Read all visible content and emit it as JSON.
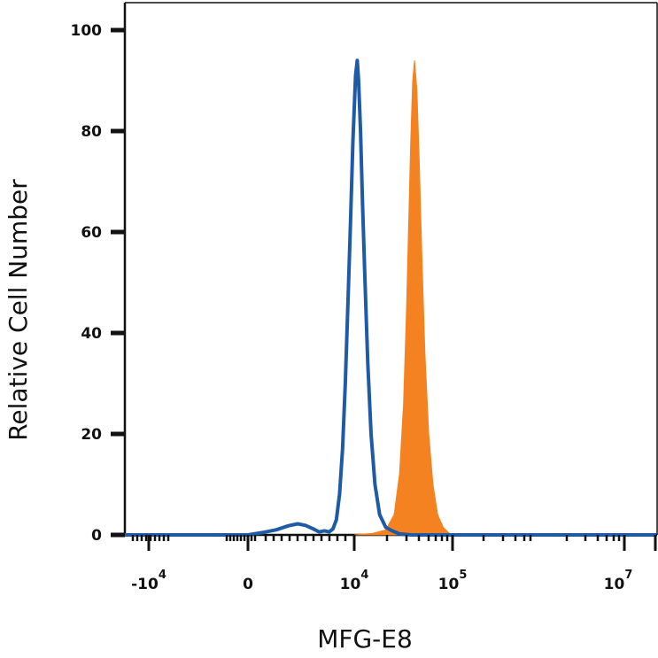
{
  "chart_data": {
    "type": "area",
    "xlabel": "MFG-E8",
    "ylabel": "Relative Cell Number",
    "xscale": "biexponential",
    "ylim": [
      0,
      100
    ],
    "y_ticks": [
      "0",
      "20",
      "40",
      "60",
      "80",
      "100"
    ],
    "x_ticks": [
      {
        "base": "-10",
        "exp": "4"
      },
      {
        "base": "0",
        "exp": ""
      },
      {
        "base": "10",
        "exp": "4"
      },
      {
        "base": "10",
        "exp": "5"
      },
      {
        "base": "10",
        "exp": "7"
      }
    ],
    "grid": false,
    "legend": "none",
    "series": [
      {
        "style": "filled",
        "color": "#F58220",
        "points": [
          [
            10000,
            0
          ],
          [
            15000,
            0.3
          ],
          [
            20000,
            1
          ],
          [
            24000,
            4
          ],
          [
            27000,
            12
          ],
          [
            29500,
            26
          ],
          [
            31500,
            45
          ],
          [
            33000,
            62
          ],
          [
            34500,
            78
          ],
          [
            36000,
            90
          ],
          [
            37500,
            94
          ],
          [
            39500,
            88
          ],
          [
            41500,
            74
          ],
          [
            44000,
            55
          ],
          [
            47000,
            36
          ],
          [
            51000,
            20
          ],
          [
            56000,
            10
          ],
          [
            62000,
            4
          ],
          [
            70000,
            1.5
          ],
          [
            80000,
            0.3
          ],
          [
            95000,
            0
          ]
        ]
      },
      {
        "style": "outline",
        "color": "#1F5AA6",
        "points": [
          [
            -15000,
            0
          ],
          [
            0,
            0
          ],
          [
            700,
            0.5
          ],
          [
            1300,
            1
          ],
          [
            2000,
            1.8
          ],
          [
            2600,
            2.2
          ],
          [
            3200,
            1.9
          ],
          [
            3900,
            1.2
          ],
          [
            4500,
            0.6
          ],
          [
            5100,
            0.8
          ],
          [
            5700,
            0.6
          ],
          [
            6200,
            1.2
          ],
          [
            6700,
            3
          ],
          [
            7200,
            8
          ],
          [
            7700,
            17
          ],
          [
            8200,
            30
          ],
          [
            8700,
            46
          ],
          [
            9200,
            62
          ],
          [
            9700,
            78
          ],
          [
            10300,
            91
          ],
          [
            10700,
            94
          ],
          [
            11000,
            90
          ],
          [
            11500,
            80
          ],
          [
            12000,
            66
          ],
          [
            12700,
            50
          ],
          [
            13500,
            34
          ],
          [
            14500,
            20
          ],
          [
            15800,
            10
          ],
          [
            17500,
            4
          ],
          [
            20000,
            1.5
          ],
          [
            23000,
            0.8
          ],
          [
            27000,
            0.2
          ],
          [
            35000,
            0
          ],
          [
            10000000,
            0
          ],
          [
            30000000,
            0
          ]
        ]
      }
    ]
  }
}
